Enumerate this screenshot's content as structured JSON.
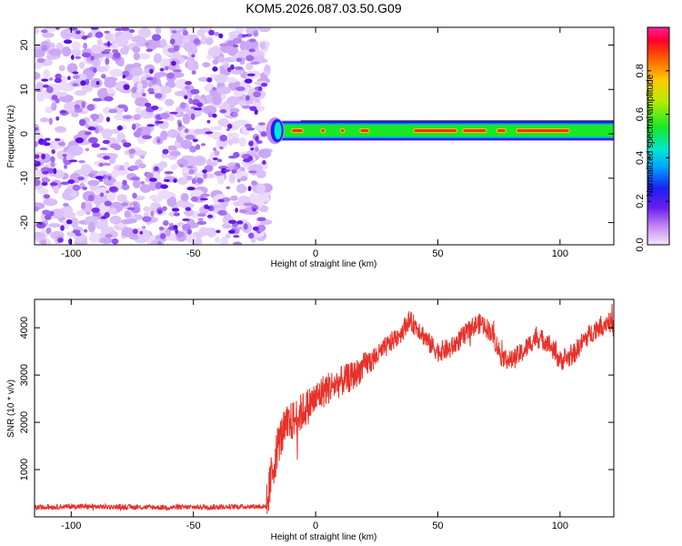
{
  "title": "KOM5.2026.087.03.50.G09",
  "chart_data": [
    {
      "type": "heatmap",
      "title": "KOM5.2026.087.03.50.G09",
      "xlabel": "Height of straight line (km)",
      "ylabel": "Frequency (Hz)",
      "xlim": [
        -115,
        122
      ],
      "ylim": [
        -25,
        24
      ],
      "xticks": [
        -100,
        -50,
        0,
        50,
        100
      ],
      "xtick_labels": [
        "-100",
        "-50",
        "0",
        "50",
        "100"
      ],
      "yticks": [
        -20,
        -10,
        0,
        10,
        20
      ],
      "ytick_labels": [
        "-20",
        "-10",
        "0",
        "10",
        "20"
      ],
      "noise_region_x": [
        -115,
        -21
      ],
      "signal_band": {
        "x": [
          -21,
          122
        ],
        "freq_center": 0.7,
        "halfwidth": 2
      },
      "colorbar": {
        "label": "Normalized spectral amplitude",
        "range": [
          0.0,
          1.0
        ],
        "ticks": [
          0.0,
          0.2,
          0.4,
          0.6,
          0.8
        ],
        "tick_labels": [
          "0.0",
          "0.2",
          "0.4",
          "0.6",
          "0.8"
        ]
      }
    },
    {
      "type": "line",
      "xlabel": "Height of straight line (km)",
      "ylabel": "SNR (10 * v/v)",
      "xlim": [
        -115,
        122
      ],
      "ylim": [
        0,
        4600
      ],
      "xticks": [
        -100,
        -50,
        0,
        50,
        100
      ],
      "xtick_labels": [
        "-100",
        "-50",
        "0",
        "50",
        "100"
      ],
      "yticks": [
        1000,
        2000,
        3000,
        4000
      ],
      "ytick_labels": [
        "1000",
        "2000",
        "3000",
        "4000"
      ],
      "color": "#e8312a",
      "series": [
        {
          "name": "SNR",
          "x": [
            -115,
            -100,
            -80,
            -60,
            -40,
            -25,
            -20,
            -18,
            -15,
            -12,
            -8,
            -4,
            0,
            4,
            8,
            12,
            16,
            20,
            25,
            30,
            35,
            38,
            42,
            46,
            50,
            55,
            60,
            65,
            68,
            72,
            76,
            80,
            85,
            90,
            95,
            100,
            105,
            110,
            115,
            120,
            122
          ],
          "y": [
            200,
            220,
            210,
            200,
            210,
            220,
            220,
            900,
            1600,
            1900,
            2100,
            2300,
            2500,
            2700,
            2800,
            2900,
            3000,
            3200,
            3400,
            3650,
            3900,
            4150,
            4000,
            3700,
            3500,
            3550,
            3800,
            4050,
            4100,
            3900,
            3400,
            3300,
            3500,
            3800,
            3700,
            3300,
            3400,
            3750,
            4000,
            4150,
            4000
          ]
        }
      ]
    }
  ]
}
